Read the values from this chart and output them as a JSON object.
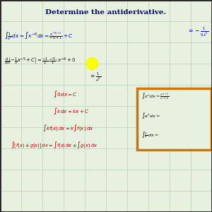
{
  "title": "Determine the antiderivative.",
  "bg_color": "#e8f0e0",
  "title_color": "#00008B",
  "blue_color": "#0000CC",
  "dark_color": "#111111",
  "red_color": "#CC0000",
  "orange_color": "#CC7700",
  "grid_color": "#b0c8b0",
  "line1_left": "$\\int\\!\\dfrac{1}{x^6}\\,dx = \\int x^{-6}dx = \\dfrac{x^{-6+1}}{-6+1}+C$",
  "line1_right": "$= -\\dfrac{1}{5x^5}$",
  "line2": "$\\dfrac{d}{dx}\\!\\left[-\\tfrac{1}{5}x^{-5}\\!+C\\right] = \\tfrac{-1}{5}\\!\\cdot\\!\\tfrac{-5}{1}\\!\\cdot\\! x^{-6}+0$",
  "line2b": "$= \\dfrac{1}{x^6}$",
  "rule1": "$\\int 0\\,dx = C$",
  "rule2": "$\\int k\\,dx = kx + C$",
  "rule3": "$\\int kf(x)\\,dx = k\\int f(x)\\,dx$",
  "rule4": "$\\int [f(x) \\pm g(x)]\\,dx = \\int f(x)\\,dx \\pm \\int g(x)\\,dx$",
  "box_line1": "$\\int x^n dx = \\dfrac{x^{n+1}}{n+1}$",
  "box_line2": "$\\int e^x dx =$",
  "box_line3": "$\\int \\dfrac{1}{x}\\,dx =$"
}
